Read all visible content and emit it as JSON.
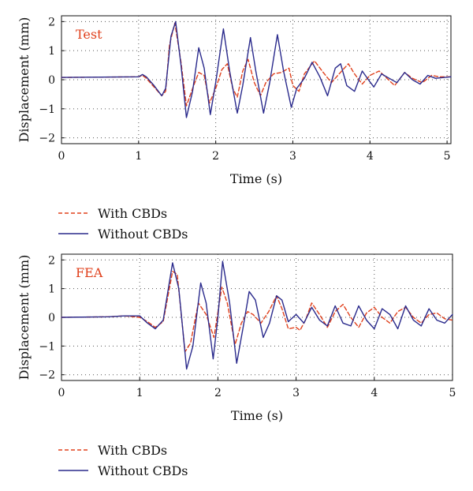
{
  "chart_data": [
    {
      "type": "line",
      "tag": "Test",
      "xlabel": "Time (s)",
      "ylabel": "Displacement (mm)",
      "xlim": [
        0,
        5.05
      ],
      "ylim": [
        -2.2,
        2.2
      ],
      "xticks": [
        0,
        1,
        2,
        3,
        4,
        5
      ],
      "yticks": [
        -2,
        -1,
        0,
        1,
        2
      ],
      "grid": "dotted",
      "legend": "below",
      "series": [
        {
          "name": "With CBDs",
          "style": "dashed",
          "color": "#e0401c",
          "points": [
            [
              0,
              0.08
            ],
            [
              1.0,
              0.1
            ],
            [
              1.05,
              0.15
            ],
            [
              1.1,
              0.05
            ],
            [
              1.2,
              -0.25
            ],
            [
              1.3,
              -0.55
            ],
            [
              1.35,
              -0.4
            ],
            [
              1.4,
              1.2
            ],
            [
              1.47,
              1.95
            ],
            [
              1.55,
              0.6
            ],
            [
              1.62,
              -0.9
            ],
            [
              1.7,
              -0.3
            ],
            [
              1.78,
              0.25
            ],
            [
              1.85,
              0.15
            ],
            [
              1.92,
              -0.8
            ],
            [
              2.0,
              -0.3
            ],
            [
              2.08,
              0.35
            ],
            [
              2.15,
              0.55
            ],
            [
              2.22,
              -0.3
            ],
            [
              2.28,
              -0.6
            ],
            [
              2.35,
              0.3
            ],
            [
              2.42,
              0.7
            ],
            [
              2.5,
              -0.1
            ],
            [
              2.58,
              -0.55
            ],
            [
              2.65,
              -0.1
            ],
            [
              2.75,
              0.2
            ],
            [
              2.85,
              0.25
            ],
            [
              2.95,
              0.4
            ],
            [
              3.0,
              -0.2
            ],
            [
              3.08,
              -0.4
            ],
            [
              3.15,
              0.2
            ],
            [
              3.28,
              0.65
            ],
            [
              3.38,
              0.3
            ],
            [
              3.5,
              -0.1
            ],
            [
              3.6,
              0.2
            ],
            [
              3.72,
              0.55
            ],
            [
              3.8,
              0.2
            ],
            [
              3.9,
              -0.15
            ],
            [
              4.0,
              0.15
            ],
            [
              4.12,
              0.3
            ],
            [
              4.22,
              0.05
            ],
            [
              4.32,
              -0.2
            ],
            [
              4.45,
              0.25
            ],
            [
              4.55,
              0.05
            ],
            [
              4.68,
              -0.1
            ],
            [
              4.8,
              0.15
            ],
            [
              4.9,
              0.1
            ],
            [
              5.05,
              0.1
            ]
          ]
        },
        {
          "name": "Without CBDs",
          "style": "solid",
          "color": "#2a2a8c",
          "points": [
            [
              0,
              0.08
            ],
            [
              1.0,
              0.1
            ],
            [
              1.05,
              0.18
            ],
            [
              1.1,
              0.1
            ],
            [
              1.2,
              -0.2
            ],
            [
              1.3,
              -0.55
            ],
            [
              1.35,
              -0.3
            ],
            [
              1.42,
              1.5
            ],
            [
              1.48,
              2.0
            ],
            [
              1.55,
              0.5
            ],
            [
              1.62,
              -1.3
            ],
            [
              1.7,
              -0.4
            ],
            [
              1.78,
              1.1
            ],
            [
              1.85,
              0.4
            ],
            [
              1.93,
              -1.2
            ],
            [
              2.0,
              -0.1
            ],
            [
              2.1,
              1.75
            ],
            [
              2.18,
              0.3
            ],
            [
              2.28,
              -1.15
            ],
            [
              2.35,
              -0.2
            ],
            [
              2.45,
              1.45
            ],
            [
              2.52,
              0.3
            ],
            [
              2.62,
              -1.15
            ],
            [
              2.7,
              -0.1
            ],
            [
              2.8,
              1.55
            ],
            [
              2.88,
              0.3
            ],
            [
              2.98,
              -0.95
            ],
            [
              3.05,
              -0.3
            ],
            [
              3.15,
              0.05
            ],
            [
              3.25,
              0.6
            ],
            [
              3.35,
              0.1
            ],
            [
              3.45,
              -0.55
            ],
            [
              3.55,
              0.4
            ],
            [
              3.62,
              0.55
            ],
            [
              3.7,
              -0.2
            ],
            [
              3.8,
              -0.4
            ],
            [
              3.9,
              0.3
            ],
            [
              3.98,
              0.0
            ],
            [
              4.05,
              -0.25
            ],
            [
              4.15,
              0.2
            ],
            [
              4.25,
              0.05
            ],
            [
              4.35,
              -0.1
            ],
            [
              4.45,
              0.25
            ],
            [
              4.55,
              0.0
            ],
            [
              4.65,
              -0.15
            ],
            [
              4.75,
              0.15
            ],
            [
              4.85,
              0.05
            ],
            [
              5.05,
              0.1
            ]
          ]
        }
      ]
    },
    {
      "type": "line",
      "tag": "FEA",
      "xlabel": "Time (s)",
      "ylabel": "Displacement (mm)",
      "xlim": [
        0,
        5.0
      ],
      "ylim": [
        -2.2,
        2.2
      ],
      "xticks": [
        0,
        1,
        2,
        3,
        4,
        5
      ],
      "yticks": [
        -2,
        -1,
        0,
        1,
        2
      ],
      "grid": "dotted",
      "legend": "below",
      "series": [
        {
          "name": "With CBDs",
          "style": "dashed",
          "color": "#e0401c",
          "points": [
            [
              0,
              0.0
            ],
            [
              0.6,
              0.02
            ],
            [
              0.8,
              0.05
            ],
            [
              1.0,
              0.0
            ],
            [
              1.1,
              -0.15
            ],
            [
              1.2,
              -0.35
            ],
            [
              1.3,
              -0.15
            ],
            [
              1.42,
              1.6
            ],
            [
              1.48,
              1.5
            ],
            [
              1.58,
              -1.2
            ],
            [
              1.65,
              -0.9
            ],
            [
              1.75,
              0.5
            ],
            [
              1.85,
              0.1
            ],
            [
              1.95,
              -0.7
            ],
            [
              2.05,
              1.05
            ],
            [
              2.12,
              0.5
            ],
            [
              2.22,
              -0.95
            ],
            [
              2.3,
              -0.2
            ],
            [
              2.38,
              0.2
            ],
            [
              2.45,
              0.1
            ],
            [
              2.55,
              -0.2
            ],
            [
              2.65,
              0.2
            ],
            [
              2.75,
              0.75
            ],
            [
              2.82,
              0.3
            ],
            [
              2.9,
              -0.4
            ],
            [
              3.0,
              -0.35
            ],
            [
              3.05,
              -0.45
            ],
            [
              3.12,
              -0.1
            ],
            [
              3.2,
              0.5
            ],
            [
              3.3,
              0.1
            ],
            [
              3.4,
              -0.35
            ],
            [
              3.5,
              0.2
            ],
            [
              3.6,
              0.45
            ],
            [
              3.7,
              0.0
            ],
            [
              3.8,
              -0.35
            ],
            [
              3.9,
              0.15
            ],
            [
              4.0,
              0.35
            ],
            [
              4.1,
              0.0
            ],
            [
              4.2,
              -0.2
            ],
            [
              4.3,
              0.2
            ],
            [
              4.4,
              0.35
            ],
            [
              4.5,
              0.0
            ],
            [
              4.6,
              -0.2
            ],
            [
              4.7,
              0.1
            ],
            [
              4.8,
              0.15
            ],
            [
              4.9,
              -0.05
            ],
            [
              5.0,
              -0.1
            ]
          ]
        },
        {
          "name": "Without CBDs",
          "style": "solid",
          "color": "#2a2a8c",
          "points": [
            [
              0,
              0.0
            ],
            [
              0.6,
              0.02
            ],
            [
              0.8,
              0.05
            ],
            [
              1.0,
              0.05
            ],
            [
              1.1,
              -0.2
            ],
            [
              1.2,
              -0.4
            ],
            [
              1.3,
              -0.1
            ],
            [
              1.42,
              1.9
            ],
            [
              1.5,
              1.0
            ],
            [
              1.6,
              -1.8
            ],
            [
              1.68,
              -1.0
            ],
            [
              1.78,
              1.2
            ],
            [
              1.85,
              0.5
            ],
            [
              1.94,
              -1.45
            ],
            [
              2.0,
              0.0
            ],
            [
              2.06,
              1.95
            ],
            [
              2.15,
              0.5
            ],
            [
              2.24,
              -1.6
            ],
            [
              2.32,
              -0.4
            ],
            [
              2.4,
              0.9
            ],
            [
              2.48,
              0.6
            ],
            [
              2.58,
              -0.7
            ],
            [
              2.66,
              -0.2
            ],
            [
              2.75,
              0.75
            ],
            [
              2.82,
              0.6
            ],
            [
              2.9,
              -0.15
            ],
            [
              3.0,
              0.1
            ],
            [
              3.1,
              -0.2
            ],
            [
              3.2,
              0.35
            ],
            [
              3.3,
              -0.1
            ],
            [
              3.4,
              -0.3
            ],
            [
              3.5,
              0.4
            ],
            [
              3.6,
              -0.2
            ],
            [
              3.7,
              -0.3
            ],
            [
              3.8,
              0.4
            ],
            [
              3.9,
              -0.1
            ],
            [
              4.0,
              -0.4
            ],
            [
              4.1,
              0.3
            ],
            [
              4.2,
              0.1
            ],
            [
              4.3,
              -0.4
            ],
            [
              4.4,
              0.4
            ],
            [
              4.5,
              -0.1
            ],
            [
              4.6,
              -0.3
            ],
            [
              4.7,
              0.3
            ],
            [
              4.8,
              -0.1
            ],
            [
              4.9,
              -0.2
            ],
            [
              5.0,
              0.1
            ]
          ]
        }
      ]
    }
  ]
}
